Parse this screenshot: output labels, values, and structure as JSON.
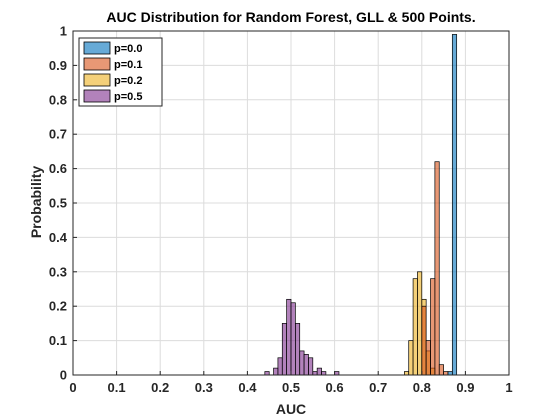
{
  "chart_data": {
    "type": "bar",
    "title": "AUC Distribution for Random Forest, GLL & 500 Points.",
    "xlabel": "AUC",
    "ylabel": "Probability",
    "xlim": [
      0,
      1
    ],
    "ylim": [
      0,
      1
    ],
    "xticks": [
      "0",
      "0.1",
      "0.2",
      "0.3",
      "0.4",
      "0.5",
      "0.6",
      "0.7",
      "0.8",
      "0.9",
      "1"
    ],
    "yticks": [
      "0",
      "0.1",
      "0.2",
      "0.3",
      "0.4",
      "0.5",
      "0.6",
      "0.7",
      "0.8",
      "0.9",
      "1"
    ],
    "grid": true,
    "legend_position": "top-left",
    "bin_width": 0.01,
    "series": [
      {
        "name": "p=0.5",
        "color": "#7e2f8e",
        "bins": [
          {
            "x": 0.44,
            "y": 0.01
          },
          {
            "x": 0.46,
            "y": 0.02
          },
          {
            "x": 0.47,
            "y": 0.05
          },
          {
            "x": 0.48,
            "y": 0.15
          },
          {
            "x": 0.49,
            "y": 0.22
          },
          {
            "x": 0.5,
            "y": 0.21
          },
          {
            "x": 0.51,
            "y": 0.15
          },
          {
            "x": 0.52,
            "y": 0.07
          },
          {
            "x": 0.53,
            "y": 0.06
          },
          {
            "x": 0.54,
            "y": 0.05
          },
          {
            "x": 0.55,
            "y": 0.01
          },
          {
            "x": 0.56,
            "y": 0.02
          },
          {
            "x": 0.57,
            "y": 0.01
          },
          {
            "x": 0.6,
            "y": 0.01
          }
        ]
      },
      {
        "name": "p=0.2",
        "color": "#edb120",
        "bins": [
          {
            "x": 0.76,
            "y": 0.01
          },
          {
            "x": 0.77,
            "y": 0.1
          },
          {
            "x": 0.78,
            "y": 0.28
          },
          {
            "x": 0.79,
            "y": 0.3
          },
          {
            "x": 0.8,
            "y": 0.22
          },
          {
            "x": 0.81,
            "y": 0.07
          },
          {
            "x": 0.82,
            "y": 0.02
          }
        ]
      },
      {
        "name": "p=0.1",
        "color": "#d95319",
        "bins": [
          {
            "x": 0.8,
            "y": 0.2
          },
          {
            "x": 0.81,
            "y": 0.1
          },
          {
            "x": 0.82,
            "y": 0.28
          },
          {
            "x": 0.83,
            "y": 0.62
          },
          {
            "x": 0.84,
            "y": 0.03
          },
          {
            "x": 0.85,
            "y": 0.01
          }
        ]
      },
      {
        "name": "p=0.0",
        "color": "#0072bd",
        "bins": [
          {
            "x": 0.86,
            "y": 0.01
          },
          {
            "x": 0.87,
            "y": 0.99
          }
        ]
      }
    ],
    "legend_order": [
      "p=0.0",
      "p=0.1",
      "p=0.2",
      "p=0.5"
    ]
  }
}
